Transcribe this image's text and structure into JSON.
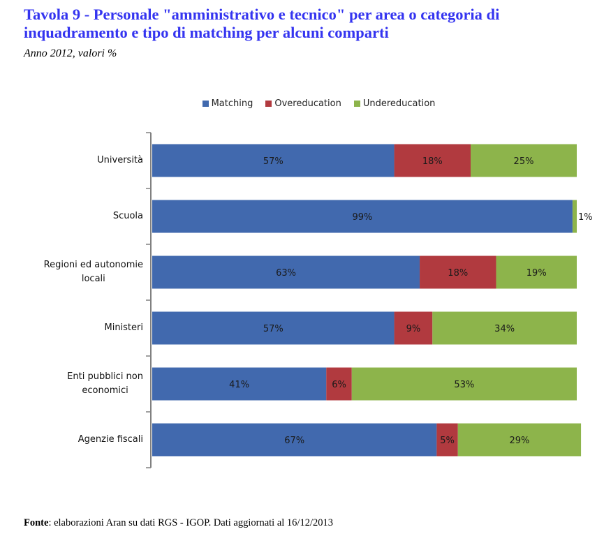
{
  "title": "Tavola 9 - Personale \"amministrativo e tecnico\" per area o categoria di inquadramento e tipo di matching per alcuni comparti",
  "subtitle": "Anno 2012, valori %",
  "footer": {
    "label": "Fonte",
    "text": ": elaborazioni Aran su dati RGS - IGOP. Dati aggiornati al 16/12/2013"
  },
  "colors": {
    "matching": "#4169AE",
    "overeducation": "#B13A3F",
    "undereducation": "#8DB44B",
    "axis": "#808080"
  },
  "chart_data": {
    "type": "bar",
    "orientation": "horizontal",
    "stacked": true,
    "title": "",
    "xlabel": "",
    "ylabel": "",
    "xlim": [
      0,
      100
    ],
    "grid": false,
    "legend_position": "top",
    "categories": [
      "Università",
      "Scuola",
      "Regioni ed autonomie locali",
      "Ministeri",
      "Enti pubblici non economici",
      "Agenzie fiscali"
    ],
    "category_lines": [
      [
        "Università"
      ],
      [
        "Scuola"
      ],
      [
        "Regioni ed autonomie",
        "locali"
      ],
      [
        "Ministeri"
      ],
      [
        "Enti pubblici non",
        "economici"
      ],
      [
        "Agenzie fiscali"
      ]
    ],
    "series": [
      {
        "name": "Matching",
        "values": [
          57,
          99,
          63,
          57,
          41,
          67
        ]
      },
      {
        "name": "Overeducation",
        "values": [
          18,
          0,
          18,
          9,
          6,
          5
        ]
      },
      {
        "name": "Undereducation",
        "values": [
          25,
          1,
          19,
          34,
          53,
          29
        ]
      }
    ],
    "data_labels": [
      [
        "57%",
        "99%",
        "63%",
        "57%",
        "41%",
        "67%"
      ],
      [
        "18%",
        "",
        "18%",
        "9%",
        "6%",
        "5%"
      ],
      [
        "25%",
        "1%",
        "19%",
        "34%",
        "53%",
        "29%"
      ]
    ]
  }
}
